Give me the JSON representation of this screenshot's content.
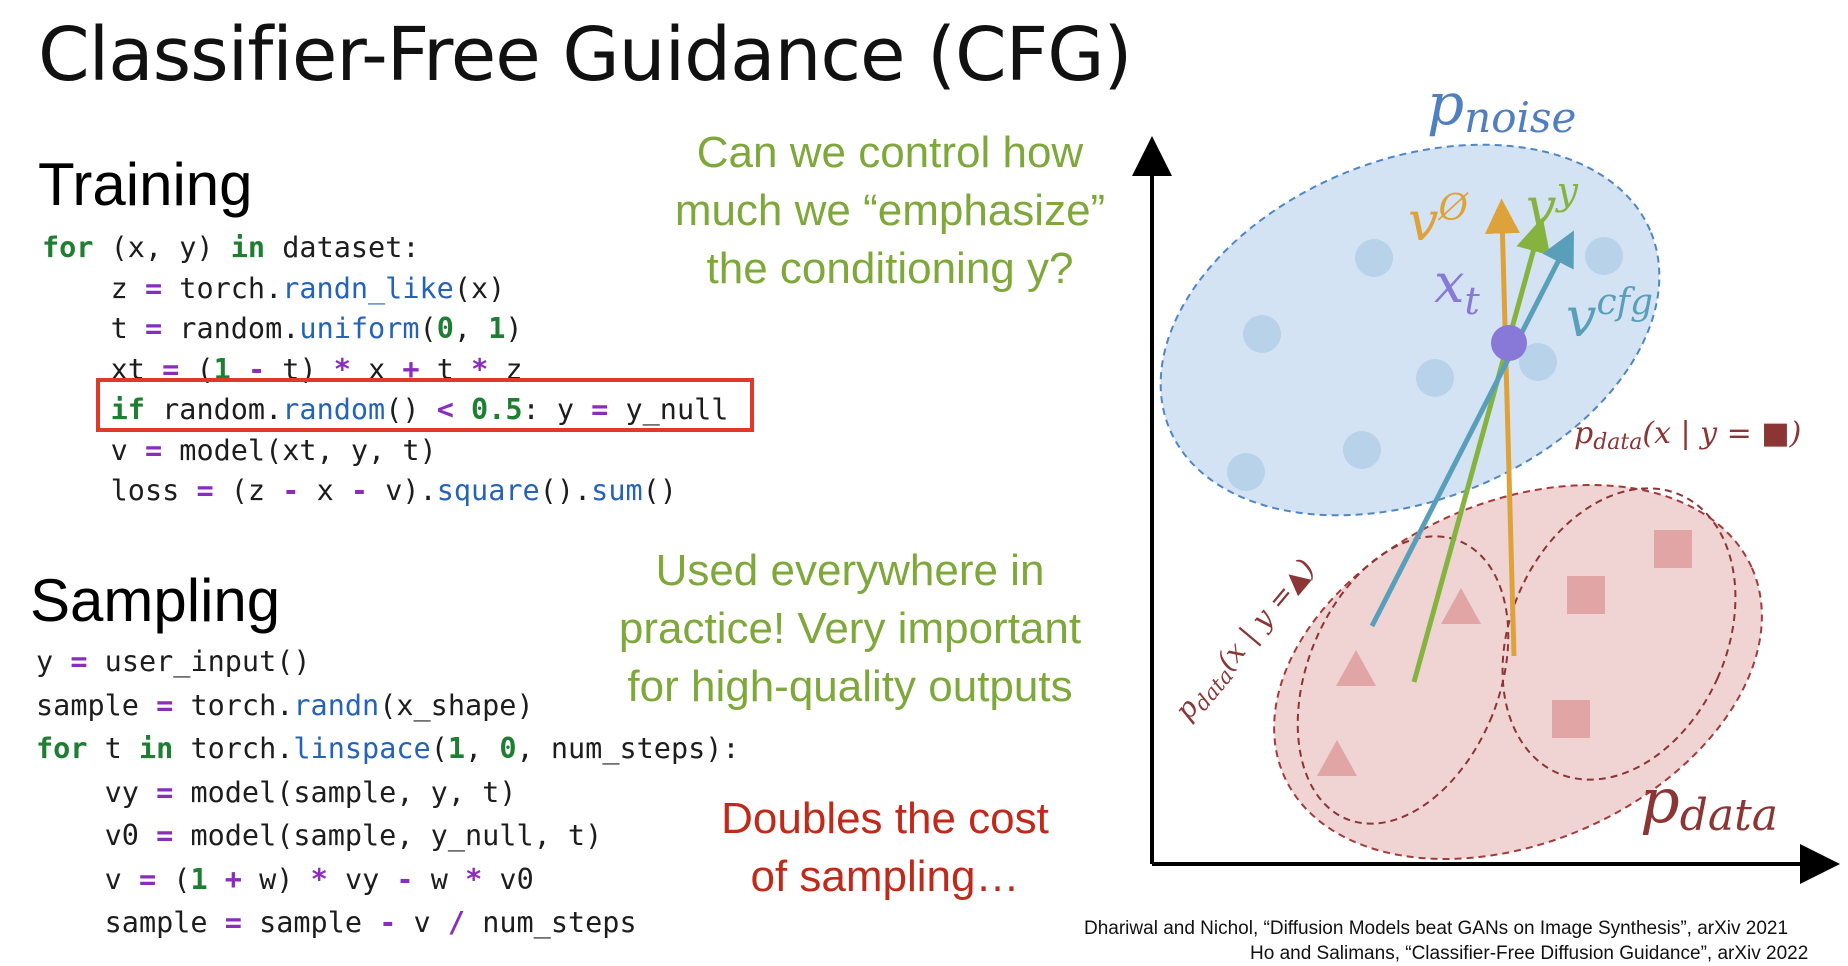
{
  "slide": {
    "title": "Classifier-Free Guidance (CFG)",
    "training": {
      "heading": "Training",
      "code": [
        [
          {
            "t": "for",
            "c": "kw"
          },
          {
            "t": " (x, y) "
          },
          {
            "t": "in",
            "c": "kw"
          },
          {
            "t": " dataset:"
          }
        ],
        [
          {
            "t": "    z "
          },
          {
            "t": "=",
            "c": "op"
          },
          {
            "t": " torch."
          },
          {
            "t": "randn_like",
            "c": "fn"
          },
          {
            "t": "(x)"
          }
        ],
        [
          {
            "t": "    t "
          },
          {
            "t": "=",
            "c": "op"
          },
          {
            "t": " random."
          },
          {
            "t": "uniform",
            "c": "fn"
          },
          {
            "t": "("
          },
          {
            "t": "0",
            "c": "num"
          },
          {
            "t": ", "
          },
          {
            "t": "1",
            "c": "num"
          },
          {
            "t": ")"
          }
        ],
        [
          {
            "t": "    xt "
          },
          {
            "t": "=",
            "c": "op"
          },
          {
            "t": " ("
          },
          {
            "t": "1",
            "c": "num"
          },
          {
            "t": " "
          },
          {
            "t": "-",
            "c": "op"
          },
          {
            "t": " t) "
          },
          {
            "t": "*",
            "c": "op"
          },
          {
            "t": " x "
          },
          {
            "t": "+",
            "c": "op"
          },
          {
            "t": " t "
          },
          {
            "t": "*",
            "c": "op"
          },
          {
            "t": " z"
          }
        ],
        [
          {
            "t": "    "
          },
          {
            "t": "if",
            "c": "kw"
          },
          {
            "t": " random."
          },
          {
            "t": "random",
            "c": "fn"
          },
          {
            "t": "() "
          },
          {
            "t": "<",
            "c": "op"
          },
          {
            "t": " "
          },
          {
            "t": "0.5",
            "c": "num"
          },
          {
            "t": ": y "
          },
          {
            "t": "=",
            "c": "op"
          },
          {
            "t": " y_null"
          }
        ],
        [
          {
            "t": "    v "
          },
          {
            "t": "=",
            "c": "op"
          },
          {
            "t": " model(xt, y, t)"
          }
        ],
        [
          {
            "t": "    loss "
          },
          {
            "t": "=",
            "c": "op"
          },
          {
            "t": " (z "
          },
          {
            "t": "-",
            "c": "op"
          },
          {
            "t": " x "
          },
          {
            "t": "-",
            "c": "op"
          },
          {
            "t": " v)."
          },
          {
            "t": "square",
            "c": "fn"
          },
          {
            "t": "()."
          },
          {
            "t": "sum",
            "c": "fn"
          },
          {
            "t": "()"
          }
        ]
      ]
    },
    "sampling": {
      "heading": "Sampling",
      "code": [
        [
          {
            "t": "y "
          },
          {
            "t": "=",
            "c": "op"
          },
          {
            "t": " user_input()"
          }
        ],
        [
          {
            "t": "sample "
          },
          {
            "t": "=",
            "c": "op"
          },
          {
            "t": " torch."
          },
          {
            "t": "randn",
            "c": "fn"
          },
          {
            "t": "(x_shape)"
          }
        ],
        [
          {
            "t": "for",
            "c": "kw"
          },
          {
            "t": " t "
          },
          {
            "t": "in",
            "c": "kw"
          },
          {
            "t": " torch."
          },
          {
            "t": "linspace",
            "c": "fn"
          },
          {
            "t": "("
          },
          {
            "t": "1",
            "c": "num"
          },
          {
            "t": ", "
          },
          {
            "t": "0",
            "c": "num"
          },
          {
            "t": ", num_steps):"
          }
        ],
        [
          {
            "t": "    vy "
          },
          {
            "t": "=",
            "c": "op"
          },
          {
            "t": " model(sample, y, t)"
          }
        ],
        [
          {
            "t": "    v0 "
          },
          {
            "t": "=",
            "c": "op"
          },
          {
            "t": " model(sample, y_null, t)"
          }
        ],
        [
          {
            "t": "    v "
          },
          {
            "t": "=",
            "c": "op"
          },
          {
            "t": " ("
          },
          {
            "t": "1",
            "c": "num"
          },
          {
            "t": " "
          },
          {
            "t": "+",
            "c": "op"
          },
          {
            "t": " w) "
          },
          {
            "t": "*",
            "c": "op"
          },
          {
            "t": " vy "
          },
          {
            "t": "-",
            "c": "op"
          },
          {
            "t": " w "
          },
          {
            "t": "*",
            "c": "op"
          },
          {
            "t": " v0"
          }
        ],
        [
          {
            "t": "    sample "
          },
          {
            "t": "=",
            "c": "op"
          },
          {
            "t": " sample "
          },
          {
            "t": "-",
            "c": "op"
          },
          {
            "t": " v "
          },
          {
            "t": "/",
            "c": "op"
          },
          {
            "t": " num_steps"
          }
        ]
      ]
    },
    "notes": {
      "control": [
        "Can we control how",
        "much we “emphasize”",
        "the conditioning y?"
      ],
      "practice": [
        "Used everywhere in",
        "practice! Very important",
        "for high-quality outputs"
      ],
      "cost": [
        "Doubles the cost",
        "of sampling…"
      ]
    },
    "diagram": {
      "p_noise": "p",
      "p_noise_sub": "noise",
      "p_data": "p",
      "p_data_sub": "data",
      "cond_square": "p",
      "cond_square_sub": "data",
      "cond_square_tail": "(x | y = ■)",
      "cond_triangle": "p",
      "cond_triangle_sub": "data",
      "cond_triangle_tail": "(x | y =▲)",
      "x_t": "x",
      "x_t_sub": "t",
      "v_null": "v",
      "v_null_sup": "Ø",
      "v_y": "v",
      "v_y_sup": "y",
      "v_cfg": "v",
      "v_cfg_sup": "cfg"
    },
    "references": [
      "Dhariwal and Nichol, “Diffusion Models beat GANs on Image Synthesis”, arXiv 2021",
      "Ho and Salimans, “Classifier-Free Diffusion Guidance”, arXiv 2022"
    ],
    "colors": {
      "noise_fill": "#d3e3f3",
      "noise_dot": "#b8d2ea",
      "noise_text": "#4f7fbf",
      "data_fill": "#f0d4d4",
      "data_mark": "#e1a5a5",
      "data_text": "#8b3535",
      "v_null": "#dea23a",
      "v_y": "#86b340",
      "v_cfg": "#5a9fba",
      "x_t": "#8878d8"
    }
  }
}
